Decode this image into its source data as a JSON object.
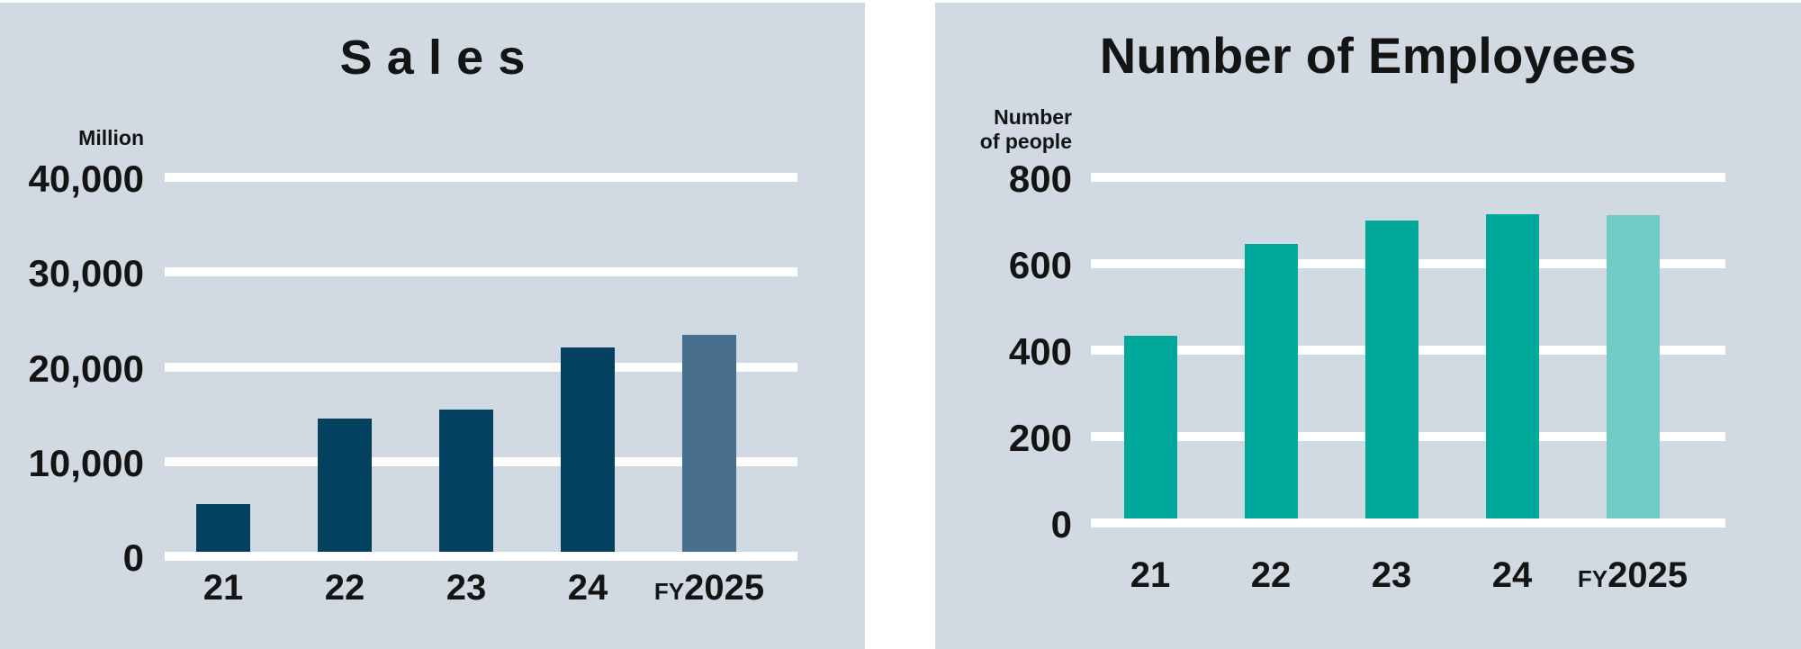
{
  "page": {
    "background_color": "#ffffff",
    "panel_background_color": "#d1d9e3",
    "text_color": "#141414"
  },
  "chart_data": [
    {
      "type": "bar",
      "title": "Sales",
      "unit_label_lines": [
        "Million"
      ],
      "categories": [
        "21",
        "22",
        "23",
        "24",
        "FY2025"
      ],
      "values": [
        5500,
        14500,
        15500,
        22000,
        23400
      ],
      "ylim": [
        0,
        40000
      ],
      "yticks": [
        "40,000",
        "30,000",
        "20,000",
        "10,000",
        "0"
      ],
      "bar_color": "#04405f",
      "highlight_bar_color": "#48708d",
      "gridline_color": "#ffffff",
      "grid": true,
      "legend": "none"
    },
    {
      "type": "bar",
      "title": "Number of Employees",
      "unit_label_lines": [
        "Number",
        "of people"
      ],
      "categories": [
        "21",
        "22",
        "23",
        "24",
        "FY2025"
      ],
      "values": [
        433,
        645,
        700,
        715,
        713
      ],
      "ylim": [
        0,
        800
      ],
      "yticks": [
        "800",
        "600",
        "400",
        "200",
        "0"
      ],
      "bar_color": "#00a79b",
      "highlight_bar_color": "#6fcbc3",
      "gridline_color": "#ffffff",
      "grid": true,
      "legend": "none"
    }
  ]
}
